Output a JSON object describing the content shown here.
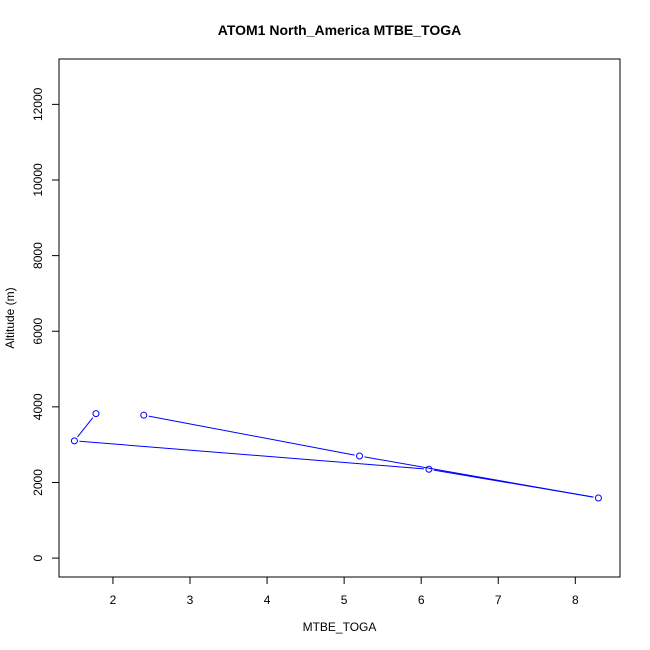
{
  "chart_data": {
    "type": "line",
    "title": "ATOM1 North_America MTBE_TOGA",
    "xlabel": "MTBE_TOGA",
    "ylabel": "Altitude (m)",
    "xlim": [
      1.3,
      8.58
    ],
    "ylim": [
      -500,
      13200
    ],
    "x_ticks": [
      2,
      3,
      4,
      5,
      6,
      7,
      8
    ],
    "y_ticks": [
      0,
      2000,
      4000,
      6000,
      8000,
      10000,
      12000
    ],
    "grid": false,
    "legend": "none",
    "series_color": "#0000ff",
    "points": [
      {
        "x": 1.78,
        "y": 3820
      },
      {
        "x": 1.5,
        "y": 3100
      },
      {
        "x": 6.1,
        "y": 2350
      },
      {
        "x": 8.3,
        "y": 1590
      },
      {
        "x": 5.2,
        "y": 2700
      },
      {
        "x": 2.4,
        "y": 3780
      }
    ]
  }
}
